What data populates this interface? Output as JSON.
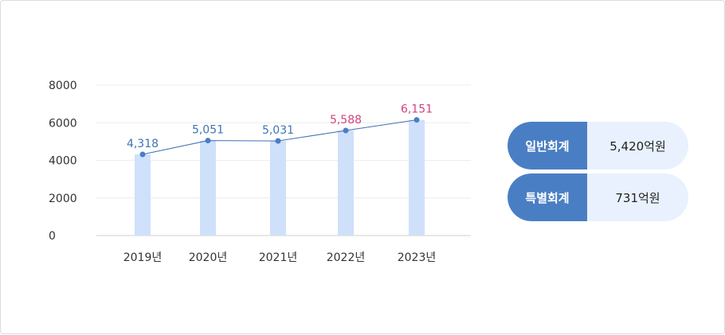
{
  "chart_data": {
    "type": "bar",
    "categories": [
      "2019년",
      "2020년",
      "2021년",
      "2022년",
      "2023년"
    ],
    "values": [
      4318,
      5051,
      5031,
      5588,
      6151
    ],
    "value_labels": [
      "4,318",
      "5,051",
      "5,031",
      "5,588",
      "6,151"
    ],
    "y_ticks": [
      "8000",
      "6000",
      "4000",
      "2000",
      "0"
    ],
    "ylim": [
      0,
      8000
    ],
    "overlay_line": true,
    "grid": true,
    "colors": {
      "bar": "#cfe0fb",
      "line": "#3f6fb4",
      "marker": "#4a7ec4",
      "label_default": "#3f74b6",
      "label_highlight": "#d2437d"
    },
    "highlighted_categories": [
      "2022년",
      "2023년"
    ]
  },
  "summary": {
    "items": [
      {
        "label": "일반회계",
        "value": "5,420억원"
      },
      {
        "label": "특별회계",
        "value": "731억원"
      }
    ],
    "label_color": "#4a7ec4",
    "value_bg": "#e8f1fd"
  }
}
